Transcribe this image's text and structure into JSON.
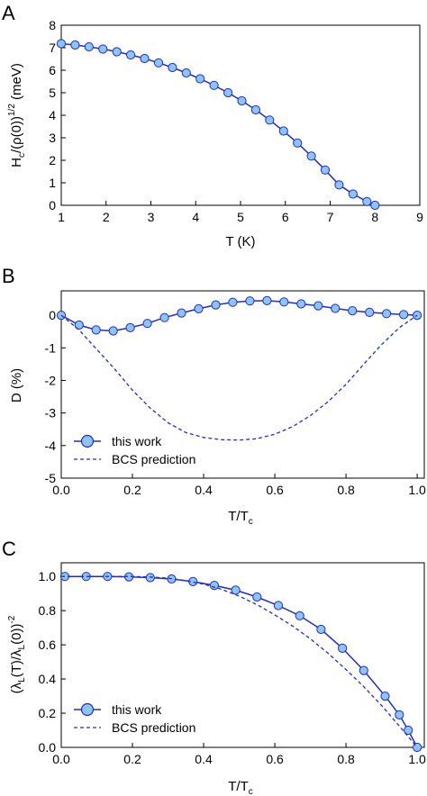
{
  "style": {
    "line": "#1f2bd6",
    "marker_fill": "#8ec5ee",
    "axis": "#000000"
  },
  "chart_data": [
    {
      "panel": "A",
      "type": "line",
      "xlabel": "T (K)",
      "ylabel_parts": {
        "a": "H",
        "b": "c",
        "c": "/(ρ(0))",
        "d": "1/2",
        "e": " (meV)"
      },
      "xlim": [
        1,
        9
      ],
      "ylim": [
        0,
        8
      ],
      "xticks": [
        1,
        2,
        3,
        4,
        5,
        6,
        7,
        8,
        9
      ],
      "yticks": [
        0,
        1,
        2,
        3,
        4,
        5,
        6,
        7,
        8
      ],
      "series": [
        {
          "style": "solid-markers",
          "x": [
            1.0,
            1.31,
            1.62,
            1.93,
            2.24,
            2.55,
            2.86,
            3.17,
            3.48,
            3.79,
            4.1,
            4.41,
            4.72,
            5.03,
            5.34,
            5.65,
            5.96,
            6.27,
            6.58,
            6.89,
            7.2,
            7.51,
            7.82,
            8.0
          ],
          "y": [
            7.18,
            7.12,
            7.04,
            6.94,
            6.82,
            6.68,
            6.52,
            6.33,
            6.12,
            5.88,
            5.62,
            5.33,
            5.0,
            4.64,
            4.24,
            3.79,
            3.3,
            2.77,
            2.19,
            1.57,
            0.91,
            0.5,
            0.17,
            0.0
          ]
        }
      ]
    },
    {
      "panel": "B",
      "type": "line",
      "xlabel_parts": {
        "a": "T/T",
        "b": "c"
      },
      "ylabel": "D (%)",
      "xlim": [
        0.0,
        1.02
      ],
      "ylim": [
        -5,
        0.75
      ],
      "xticks": [
        "0.0",
        "0.2",
        "0.4",
        "0.6",
        "0.8",
        "1.0"
      ],
      "yticks": [
        "-5",
        "-4",
        "-3",
        "-2",
        "-1",
        "0"
      ],
      "legend": {
        "location": "lower-left",
        "entries": [
          "this work",
          "BCS prediction"
        ]
      },
      "series": [
        {
          "name": "this work",
          "style": "solid-markers",
          "x": [
            0.0,
            0.05,
            0.098,
            0.146,
            0.194,
            0.242,
            0.29,
            0.338,
            0.386,
            0.434,
            0.482,
            0.53,
            0.578,
            0.626,
            0.674,
            0.722,
            0.77,
            0.818,
            0.866,
            0.914,
            0.962,
            1.0
          ],
          "y": [
            0.0,
            -0.3,
            -0.45,
            -0.48,
            -0.38,
            -0.25,
            -0.07,
            0.07,
            0.2,
            0.32,
            0.4,
            0.44,
            0.45,
            0.41,
            0.35,
            0.29,
            0.21,
            0.14,
            0.09,
            0.05,
            0.02,
            0.0
          ]
        },
        {
          "name": "BCS prediction",
          "style": "dashed",
          "x": [
            0.0,
            0.05,
            0.1,
            0.15,
            0.2,
            0.25,
            0.3,
            0.35,
            0.4,
            0.45,
            0.5,
            0.55,
            0.6,
            0.65,
            0.7,
            0.75,
            0.8,
            0.85,
            0.9,
            0.95,
            1.0
          ],
          "y": [
            0.0,
            -0.45,
            -1.05,
            -1.65,
            -2.3,
            -2.85,
            -3.3,
            -3.6,
            -3.75,
            -3.82,
            -3.83,
            -3.79,
            -3.65,
            -3.42,
            -3.08,
            -2.65,
            -2.12,
            -1.5,
            -0.9,
            -0.38,
            0.0
          ]
        }
      ]
    },
    {
      "panel": "C",
      "type": "line",
      "xlabel_parts": {
        "a": "T/T",
        "b": "c"
      },
      "ylabel_parts": {
        "a": "(λ",
        "b": "L",
        "c": "(T)/λ",
        "d": "L",
        "e": "(0))",
        "f": "-2"
      },
      "xlim": [
        0.0,
        1.02
      ],
      "ylim": [
        0.0,
        1.08
      ],
      "xticks": [
        "0.0",
        "0.2",
        "0.4",
        "0.6",
        "0.8",
        "1.0"
      ],
      "yticks": [
        "0.0",
        "0.2",
        "0.4",
        "0.6",
        "0.8",
        "1.0"
      ],
      "legend": {
        "location": "lower-left",
        "entries": [
          "this work",
          "BCS prediction"
        ]
      },
      "series": [
        {
          "name": "this work",
          "style": "solid-markers",
          "x": [
            0.01,
            0.07,
            0.13,
            0.19,
            0.25,
            0.31,
            0.37,
            0.43,
            0.49,
            0.55,
            0.61,
            0.67,
            0.73,
            0.79,
            0.85,
            0.91,
            0.95,
            0.975,
            1.0
          ],
          "y": [
            1.0,
            1.0,
            1.0,
            0.998,
            0.993,
            0.985,
            0.97,
            0.948,
            0.92,
            0.88,
            0.83,
            0.77,
            0.69,
            0.58,
            0.45,
            0.3,
            0.19,
            0.1,
            0.0
          ]
        },
        {
          "name": "BCS prediction",
          "style": "dashed",
          "x": [
            0.0,
            0.05,
            0.1,
            0.15,
            0.2,
            0.25,
            0.3,
            0.35,
            0.4,
            0.45,
            0.5,
            0.55,
            0.6,
            0.65,
            0.7,
            0.75,
            0.8,
            0.85,
            0.9,
            0.95,
            1.0
          ],
          "y": [
            1.0,
            1.0,
            1.0,
            1.0,
            1.0,
            0.997,
            0.99,
            0.975,
            0.955,
            0.925,
            0.885,
            0.835,
            0.775,
            0.71,
            0.635,
            0.55,
            0.455,
            0.355,
            0.245,
            0.125,
            0.0
          ]
        }
      ]
    }
  ]
}
